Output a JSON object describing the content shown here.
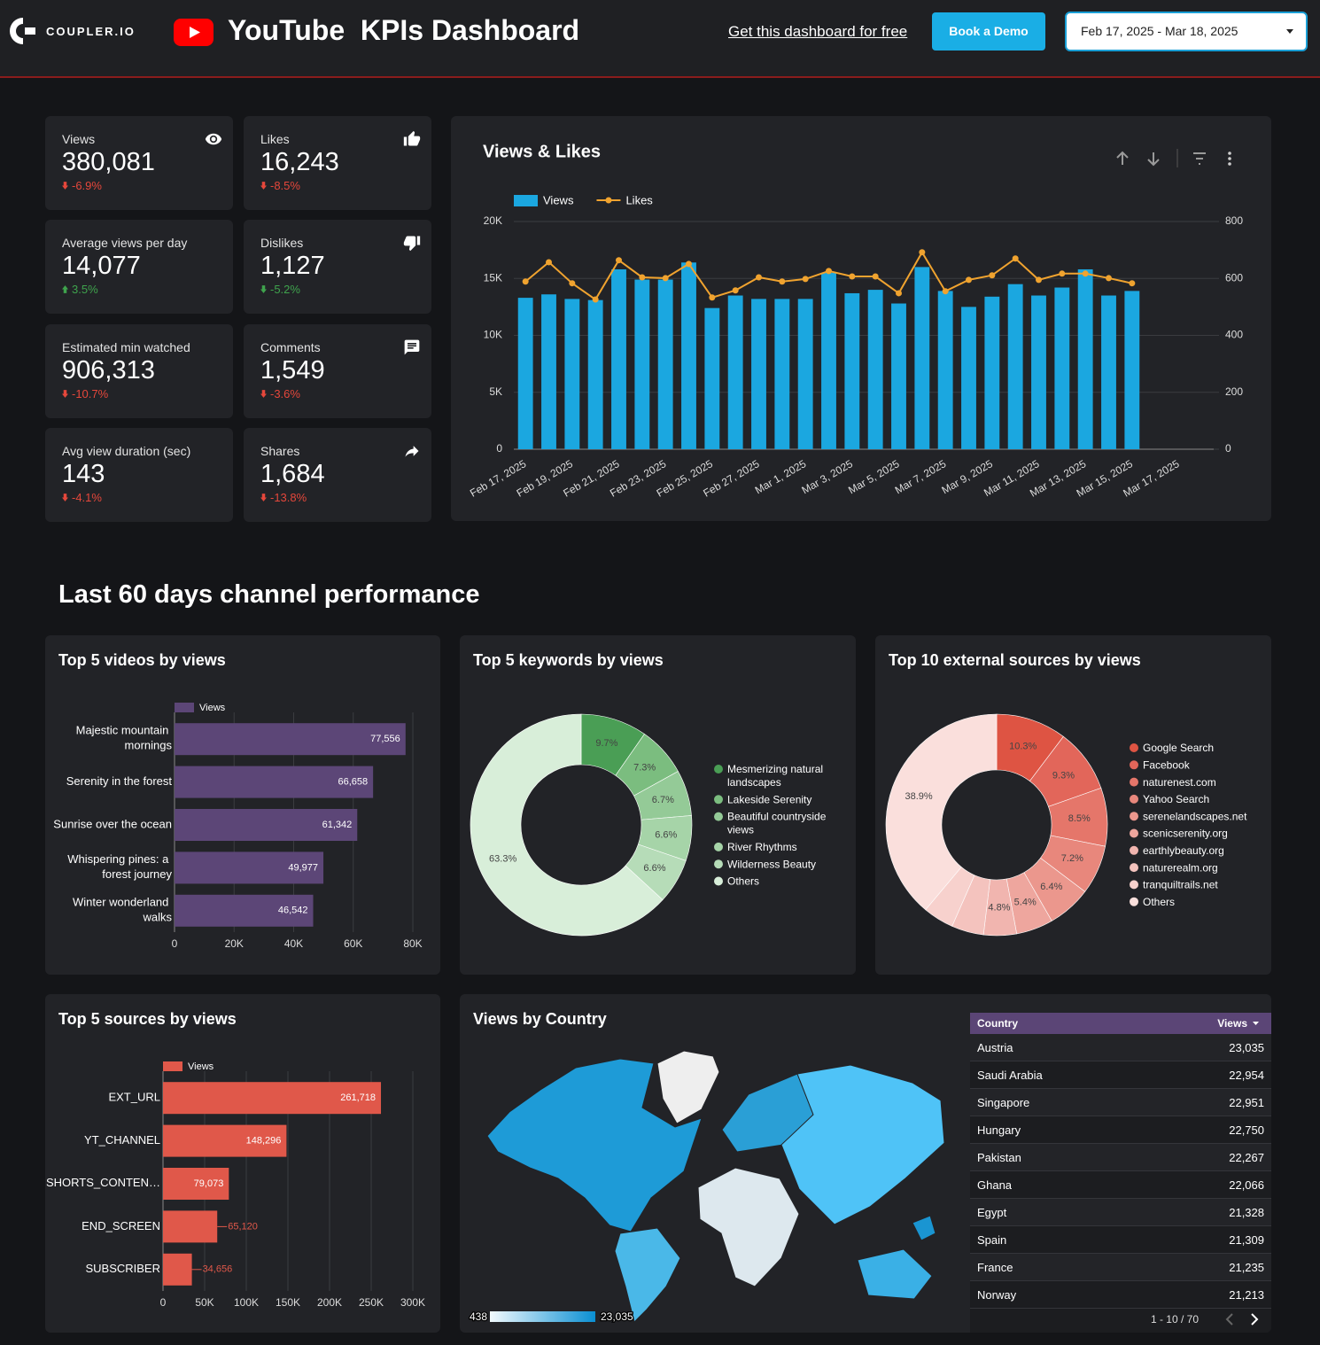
{
  "header": {
    "brand": "COUPLER.IO",
    "title": "YouTube  KPIs Dashboard",
    "cta_link": "Get this dashboard for free",
    "demo_button": "Book a Demo",
    "date_range": "Feb 17, 2025 - Mar 18, 2025"
  },
  "kpis": [
    {
      "label": "Views",
      "value": "380,081",
      "change": "-6.9%",
      "trend": "down",
      "color": "#e5473b"
    },
    {
      "label": "Likes",
      "value": "16,243",
      "change": "-8.5%",
      "trend": "down",
      "color": "#e5473b"
    },
    {
      "label": "Average views per day",
      "value": "14,077",
      "change": "3.5%",
      "trend": "up",
      "color": "#3fa34d"
    },
    {
      "label": "Dislikes",
      "value": "1,127",
      "change": "-5.2%",
      "trend": "down",
      "color": "#3fa34d"
    },
    {
      "label": "Estimated min watched",
      "value": "906,313",
      "change": "-10.7%",
      "trend": "down",
      "color": "#e5473b"
    },
    {
      "label": "Comments",
      "value": "1,549",
      "change": "-3.6%",
      "trend": "down",
      "color": "#e5473b"
    },
    {
      "label": "Avg view duration (sec)",
      "value": "143",
      "change": "-4.1%",
      "trend": "down",
      "color": "#e5473b"
    },
    {
      "label": "Shares",
      "value": "1,684",
      "change": "-13.8%",
      "trend": "down",
      "color": "#e5473b"
    }
  ],
  "section_title": "Last 60 days channel performance",
  "chart_data": [
    {
      "type": "bar_line",
      "title": "Views & Likes",
      "categories": [
        "Feb 17, 2025",
        null,
        "Feb 19, 2025",
        null,
        "Feb 21, 2025",
        null,
        "Feb 23, 2025",
        null,
        "Feb 25, 2025",
        null,
        "Feb 27, 2025",
        null,
        "Mar 1, 2025",
        null,
        "Mar 3, 2025",
        null,
        "Mar 5, 2025",
        null,
        "Mar 7, 2025",
        null,
        "Mar 9, 2025",
        null,
        "Mar 11, 2025",
        null,
        "Mar 13, 2025",
        null,
        "Mar 15, 2025",
        null,
        "Mar 17, 2025",
        null
      ],
      "series": [
        {
          "name": "Views",
          "type": "bar",
          "color": "#1ba7e0",
          "values": [
            13300,
            13600,
            13200,
            13100,
            15800,
            14900,
            14900,
            16400,
            12400,
            13500,
            13200,
            13200,
            13200,
            15500,
            13700,
            14000,
            12800,
            16000,
            13900,
            12500,
            13400,
            14500,
            13500,
            14200,
            15800,
            13500,
            13900,
            null,
            null,
            null
          ]
        },
        {
          "name": "Likes",
          "type": "line",
          "axis": "y2",
          "color": "#f0a32f",
          "values": [
            589,
            657,
            583,
            526,
            664,
            604,
            601,
            651,
            533,
            558,
            604,
            589,
            598,
            626,
            607,
            607,
            548,
            692,
            555,
            595,
            611,
            670,
            595,
            617,
            617,
            601,
            583,
            null,
            null,
            null
          ]
        }
      ],
      "ylim": [
        0,
        20000
      ],
      "yticks": [
        0,
        {
          "value": 5000,
          "label": "5K"
        },
        {
          "value": 10000,
          "label": "10K"
        },
        {
          "value": 15000,
          "label": "15K"
        },
        {
          "value": 20000,
          "label": "20K"
        }
      ],
      "y2lim": [
        0,
        800
      ],
      "y2ticks": [
        0,
        200,
        400,
        600,
        800
      ],
      "grid": true
    },
    {
      "type": "hbar",
      "title": "Top 5 videos by views",
      "categories": [
        "Majestic mountain mornings",
        "Serenity in the forest",
        "Sunrise over the ocean",
        "Whispering pines: a forest journey",
        "Winter wonderland walks"
      ],
      "series": [
        {
          "name": "Views",
          "color": "#5c4677",
          "values": [
            77556,
            66658,
            61342,
            49977,
            46542
          ],
          "value_labels": [
            "77,556",
            "66,658",
            "61,342",
            "49,977",
            "46,542"
          ]
        }
      ],
      "xlim": [
        0,
        80000
      ],
      "xticks": [
        0,
        {
          "value": 20000,
          "label": "20K"
        },
        {
          "value": 40000,
          "label": "40K"
        },
        {
          "value": 60000,
          "label": "60K"
        },
        {
          "value": 80000,
          "label": "80K"
        }
      ],
      "grid": true
    },
    {
      "type": "donut",
      "title": "Top 5 keywords by views",
      "categories": [
        "Mesmerizing natural landscapes",
        "Lakeside Serenity",
        "Beautiful countryside views",
        "River Rhythms",
        "Wilderness Beauty",
        "Others"
      ],
      "values": [
        9.7,
        7.3,
        6.7,
        6.6,
        6.6,
        63.3
      ],
      "value_labels": [
        "9.7%",
        "7.3%",
        "6.7%",
        "6.6%",
        "6.6%",
        "63.3%"
      ],
      "colors": [
        "#4a9e55",
        "#7bbd7f",
        "#94ca97",
        "#a6d4a8",
        "#b6dcb8",
        "#d8eed9"
      ]
    },
    {
      "type": "donut",
      "title": "Top 10 external sources by views",
      "categories": [
        "Google Search",
        "Facebook",
        "naturenest.com",
        "Yahoo Search",
        "serenelandscapes.net",
        "scenicserenity.org",
        "earthlybeauty.org",
        "naturerealm.org",
        "tranquiltrails.net",
        "Others"
      ],
      "values": [
        10.3,
        9.3,
        8.5,
        7.2,
        6.4,
        5.4,
        4.8,
        4.7,
        4.5,
        38.9
      ],
      "value_labels": [
        "10.3%",
        "9.3%",
        "8.5%",
        "7.2%",
        "6.4%",
        "5.4%",
        "4.8%",
        null,
        null,
        "38.9%"
      ],
      "colors": [
        "#de5443",
        "#e2665a",
        "#e5766a",
        "#e8877c",
        "#eb978d",
        "#eea69e",
        "#f1b5af",
        "#f4c3be",
        "#f7d1cd",
        "#fadfdc"
      ]
    },
    {
      "type": "hbar",
      "title": "Top 5 sources by views",
      "categories": [
        "EXT_URL",
        "YT_CHANNEL",
        "SHORTS_CONTEN…",
        "END_SCREEN",
        "SUBSCRIBER"
      ],
      "series": [
        {
          "name": "Views",
          "color": "#e0584a",
          "values": [
            261718,
            148296,
            79073,
            65120,
            34656
          ],
          "value_labels": [
            "261,718",
            "148,296",
            "79,073",
            "65,120",
            "34,656"
          ]
        }
      ],
      "xlim": [
        0,
        300000
      ],
      "xticks": [
        0,
        {
          "value": 50000,
          "label": "50K"
        },
        {
          "value": 100000,
          "label": "100K"
        },
        {
          "value": 150000,
          "label": "150K"
        },
        {
          "value": 200000,
          "label": "200K"
        },
        {
          "value": 250000,
          "label": "250K"
        },
        {
          "value": 300000,
          "label": "300K"
        }
      ],
      "grid": true
    },
    {
      "type": "map",
      "title": "Views by Country",
      "colorscale": [
        438,
        {
          "value": 23035,
          "label": "23,035"
        }
      ]
    }
  ],
  "country_table": {
    "columns": [
      "Country",
      "Views"
    ],
    "rows": [
      [
        "Austria",
        "23,035"
      ],
      [
        "Saudi Arabia",
        "22,954"
      ],
      [
        "Singapore",
        "22,951"
      ],
      [
        "Hungary",
        "22,750"
      ],
      [
        "Pakistan",
        "22,267"
      ],
      [
        "Ghana",
        "22,066"
      ],
      [
        "Egypt",
        "21,328"
      ],
      [
        "Spain",
        "21,309"
      ],
      [
        "France",
        "21,235"
      ],
      [
        "Norway",
        "21,213"
      ]
    ],
    "pagination": "1 - 10 / 70"
  }
}
